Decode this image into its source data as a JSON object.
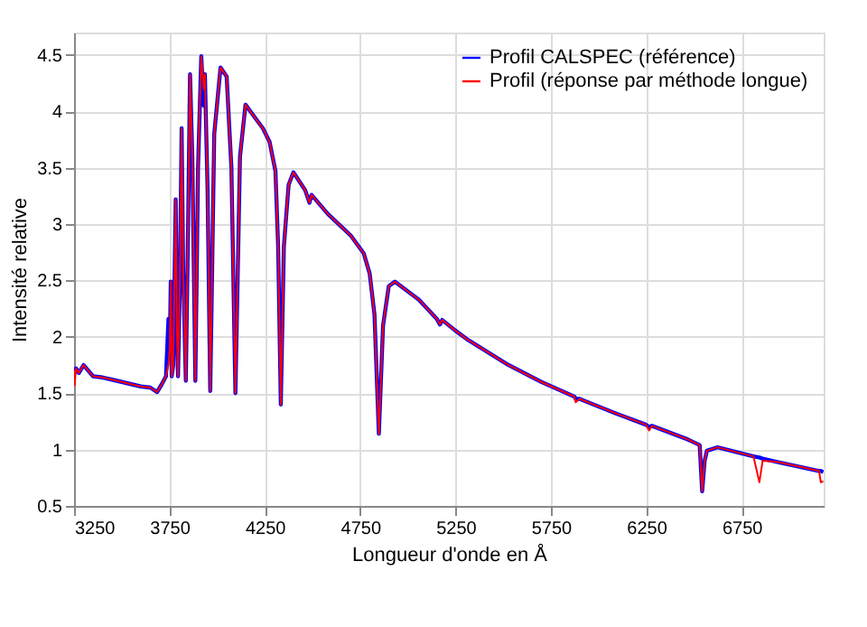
{
  "chart_data": {
    "type": "line",
    "xlabel": "Longueur d'onde en Å",
    "ylabel": "Intensité relative",
    "x": [
      3250,
      3253,
      3260,
      3275,
      3300,
      3350,
      3400,
      3450,
      3500,
      3550,
      3600,
      3650,
      3685,
      3710,
      3732,
      3745,
      3752,
      3757,
      3762,
      3770,
      3783,
      3790,
      3795,
      3805,
      3814,
      3822,
      3836,
      3848,
      3858,
      3870,
      3886,
      3900,
      3917,
      3930,
      3936,
      3950,
      3964,
      3985,
      4018,
      4050,
      4075,
      4096,
      4120,
      4149,
      4196,
      4240,
      4275,
      4306,
      4320,
      4334,
      4350,
      4375,
      4400,
      4462,
      4484,
      4495,
      4581,
      4700,
      4769,
      4800,
      4825,
      4848,
      4870,
      4900,
      4932,
      5058,
      5152,
      5168,
      5180,
      5246,
      5309,
      5528,
      5700,
      5873,
      5880,
      5900,
      6092,
      6249,
      6265,
      6280,
      6468,
      6530,
      6543,
      6556,
      6568,
      6624,
      6812,
      6843,
      6860,
      6937,
      7156,
      7165,
      7178
    ],
    "series": [
      {
        "name": "Profil CALSPEC (référence)",
        "color": "#0000ff",
        "values": [
          1.7,
          1.68,
          1.72,
          1.68,
          1.75,
          1.65,
          1.64,
          1.62,
          1.6,
          1.58,
          1.56,
          1.55,
          1.51,
          1.58,
          1.65,
          2.16,
          1.9,
          2.49,
          1.65,
          1.75,
          3.22,
          2.0,
          1.65,
          2.5,
          3.85,
          2.6,
          1.61,
          3.0,
          4.33,
          3.6,
          1.61,
          3.5,
          4.49,
          4.05,
          4.33,
          3.3,
          1.52,
          3.8,
          4.39,
          4.31,
          3.5,
          1.5,
          3.6,
          4.06,
          3.95,
          3.85,
          3.73,
          3.47,
          2.8,
          1.4,
          2.8,
          3.35,
          3.46,
          3.3,
          3.19,
          3.26,
          3.09,
          2.9,
          2.74,
          2.56,
          2.2,
          1.14,
          2.1,
          2.45,
          2.49,
          2.33,
          2.16,
          2.11,
          2.15,
          2.06,
          1.98,
          1.75,
          1.6,
          1.47,
          1.45,
          1.45,
          1.32,
          1.22,
          1.2,
          1.21,
          1.09,
          1.04,
          0.63,
          0.9,
          0.99,
          1.02,
          0.94,
          0.93,
          0.92,
          0.89,
          0.81,
          0.81,
          0.8
        ]
      },
      {
        "name": "Profil (réponse par méthode longue)",
        "color": "#ff0000",
        "values": [
          1.7,
          1.57,
          1.72,
          1.68,
          1.75,
          1.65,
          1.64,
          1.62,
          1.6,
          1.58,
          1.56,
          1.55,
          1.51,
          1.58,
          1.65,
          1.75,
          1.9,
          2.49,
          1.65,
          1.75,
          3.22,
          2.0,
          1.65,
          2.5,
          3.85,
          2.6,
          1.61,
          3.0,
          4.33,
          3.6,
          1.61,
          3.5,
          4.49,
          4.2,
          4.33,
          3.3,
          1.52,
          3.8,
          4.39,
          4.31,
          3.5,
          1.5,
          3.6,
          4.06,
          3.95,
          3.85,
          3.73,
          3.47,
          2.8,
          1.4,
          2.8,
          3.35,
          3.46,
          3.3,
          3.19,
          3.26,
          3.09,
          2.9,
          2.74,
          2.56,
          2.2,
          1.14,
          2.1,
          2.45,
          2.49,
          2.33,
          2.16,
          2.11,
          2.15,
          2.06,
          1.98,
          1.75,
          1.6,
          1.47,
          1.42,
          1.45,
          1.32,
          1.22,
          1.17,
          1.21,
          1.09,
          1.04,
          0.63,
          0.9,
          0.99,
          1.02,
          0.94,
          0.71,
          0.9,
          0.89,
          0.81,
          0.71,
          0.72
        ]
      }
    ],
    "xlim": [
      3250,
      7180
    ],
    "xticks": [
      3250,
      3750,
      4250,
      4750,
      5250,
      5750,
      6250,
      6750
    ],
    "ylim": [
      0.5,
      4.7
    ],
    "yticks": [
      0.5,
      1,
      1.5,
      2,
      2.5,
      3,
      3.5,
      4,
      4.5
    ],
    "grid": true,
    "legend": "top right",
    "line_style": "solid",
    "marker": "none"
  }
}
